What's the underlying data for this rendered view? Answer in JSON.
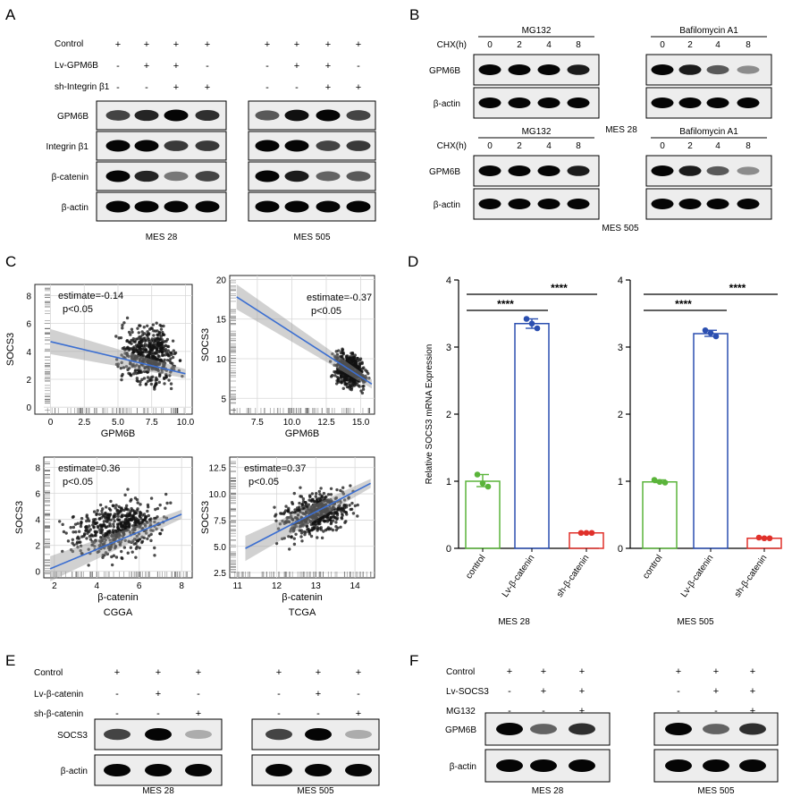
{
  "panelA": {
    "letter": "A",
    "rows": [
      "Control",
      "Lv-GPM6B",
      "sh-Integrin β1"
    ],
    "signs": [
      [
        "+",
        "+",
        "+",
        "+"
      ],
      [
        "-",
        "+",
        "+",
        "-"
      ],
      [
        "-",
        "-",
        "+",
        "+"
      ]
    ],
    "bands": [
      "GPM6B",
      "Integrin β1",
      "β-catenin",
      "β-actin"
    ],
    "cells": [
      "MES 28",
      "MES 505"
    ],
    "intensity": {
      "MES 28": [
        [
          0.7,
          0.85,
          1,
          0.8
        ],
        [
          1,
          1,
          0.75,
          0.75
        ],
        [
          1,
          0.85,
          0.45,
          0.7
        ],
        [
          1,
          1,
          1,
          1
        ]
      ],
      "MES 505": [
        [
          0.6,
          0.95,
          1,
          0.7
        ],
        [
          1,
          1,
          0.7,
          0.75
        ],
        [
          1,
          0.9,
          0.55,
          0.6
        ],
        [
          1,
          1,
          1,
          1
        ]
      ]
    }
  },
  "panelB": {
    "letter": "B",
    "chx": "CHX(h)",
    "times": [
      "0",
      "2",
      "4",
      "8"
    ],
    "treatments": [
      "MG132",
      "Bafilomycin A1"
    ],
    "bands": [
      "GPM6B",
      "β-actin"
    ],
    "cells": [
      "MES 28",
      "MES 505"
    ],
    "intensity": {
      "MG132": [
        [
          1,
          1,
          1,
          0.9
        ],
        [
          1,
          1,
          1,
          1
        ]
      ],
      "Bafilomycin A1": [
        [
          1,
          0.9,
          0.6,
          0.35
        ],
        [
          1,
          1,
          1,
          1
        ]
      ]
    }
  },
  "panelC": {
    "letter": "C",
    "plots": [
      {
        "ylabel": "SOCS3",
        "xlabel": "GPM6B",
        "estimate": "estimate=-0.14",
        "p": "p<0.05",
        "xticks": [
          "0",
          "2.5",
          "5.0",
          "7.5",
          "10.0"
        ],
        "xrange": [
          -0.5,
          10.5
        ],
        "yticks": [
          "0",
          "2",
          "4",
          "6",
          "8"
        ],
        "yrange": [
          -0.5,
          8.8
        ],
        "line": [
          [
            0,
            4.7
          ],
          [
            10,
            2.4
          ]
        ],
        "cluster": {
          "xmin": 4.5,
          "xmax": 10,
          "ymin": 0,
          "ymax": 8.5
        }
      },
      {
        "ylabel": "SOCS3",
        "xlabel": "GPM6B",
        "estimate": "estimate=-0.37",
        "p": "p<0.05",
        "xticks": [
          "7.5",
          "10.0",
          "12.5",
          "15.0"
        ],
        "xrange": [
          5.5,
          16
        ],
        "yticks": [
          "5",
          "10",
          "15",
          "20"
        ],
        "yrange": [
          3,
          20.5
        ],
        "line": [
          [
            6,
            17.8
          ],
          [
            15.8,
            6.8
          ]
        ],
        "cluster": {
          "xmin": 12.6,
          "xmax": 15.8,
          "ymin": 4,
          "ymax": 13
        }
      },
      {
        "ylabel": "SOCS3",
        "xlabel": "β-catenin",
        "estimate": "estimate=0.36",
        "p": "p<0.05",
        "xticks": [
          "2",
          "4",
          "6",
          "8"
        ],
        "xrange": [
          1.5,
          8.5
        ],
        "yticks": [
          "0",
          "2",
          "4",
          "6",
          "8"
        ],
        "yrange": [
          -0.5,
          8.8
        ],
        "line": [
          [
            1.8,
            0.2
          ],
          [
            8,
            4.4
          ]
        ],
        "cluster": {
          "xmin": 2,
          "xmax": 8,
          "ymin": 0,
          "ymax": 8.5
        },
        "caption": "CGGA"
      },
      {
        "ylabel": "SOCS3",
        "xlabel": "β-catenin",
        "estimate": "estimate=0.37",
        "p": "p<0.05",
        "xticks": [
          "11",
          "12",
          "13",
          "14"
        ],
        "xrange": [
          10.8,
          14.5
        ],
        "yticks": [
          "2.5",
          "5.0",
          "7.5",
          "10.0",
          "12.5"
        ],
        "yrange": [
          2,
          13.5
        ],
        "line": [
          [
            11.2,
            4.8
          ],
          [
            14.4,
            11
          ]
        ],
        "cluster": {
          "xmin": 11.8,
          "xmax": 14.2,
          "ymin": 4,
          "ymax": 12
        },
        "caption": "TCGA"
      }
    ]
  },
  "panelD": {
    "letter": "D",
    "ylabel": "Relative SOCS3 mRNA Expression",
    "yticks": [
      "0",
      "1",
      "2",
      "3",
      "4"
    ],
    "categories": [
      "control",
      "Lv-β-catenin",
      "sh-β-catenin"
    ],
    "sig": "****",
    "colors": [
      "#5ab43a",
      "#2b4fb0",
      "#e0302a"
    ]
  },
  "chart_data": [
    {
      "type": "bar",
      "categories": [
        "control",
        "Lv-β-catenin",
        "sh-β-catenin"
      ],
      "values": [
        1.0,
        3.35,
        0.23
      ],
      "xlabel": "MES 28",
      "ylabel": "Relative SOCS3 mRNA Expression",
      "ylim": [
        0,
        4
      ],
      "points": [
        [
          1.1,
          0.97,
          0.92
        ],
        [
          3.42,
          3.35,
          3.28
        ],
        [
          0.23,
          0.23,
          0.23
        ]
      ]
    },
    {
      "type": "bar",
      "categories": [
        "control",
        "Lv-β-catenin",
        "sh-β-catenin"
      ],
      "values": [
        0.99,
        3.2,
        0.15
      ],
      "xlabel": "MES 505",
      "ylabel": "Relative SOCS3 mRNA Expression",
      "ylim": [
        0,
        4
      ],
      "points": [
        [
          1.02,
          0.99,
          0.98
        ],
        [
          3.25,
          3.21,
          3.16
        ],
        [
          0.16,
          0.15,
          0.15
        ]
      ]
    }
  ],
  "panelE": {
    "letter": "E",
    "rows": [
      "Control",
      "Lv-β-catenin",
      "sh-β-catenin"
    ],
    "signs": [
      [
        "+",
        "+",
        "+"
      ],
      [
        "-",
        "+",
        "-"
      ],
      [
        "-",
        "-",
        "+"
      ]
    ],
    "bands": [
      "SOCS3",
      "β-actin"
    ],
    "cells": [
      "MES 28",
      "MES 505"
    ],
    "intensity": [
      [
        0.7,
        1,
        0.2
      ],
      [
        1,
        1,
        1
      ]
    ]
  },
  "panelF": {
    "letter": "F",
    "rows": [
      "Control",
      "Lv-SOCS3",
      "MG132"
    ],
    "signs": [
      [
        "+",
        "+",
        "+"
      ],
      [
        "-",
        "+",
        "+"
      ],
      [
        "-",
        "-",
        "+"
      ]
    ],
    "bands": [
      "GPM6B",
      "β-actin"
    ],
    "cells": [
      "MES 28",
      "MES 505"
    ],
    "intensity": [
      [
        1,
        0.55,
        0.8
      ],
      [
        1,
        1,
        1
      ]
    ]
  }
}
